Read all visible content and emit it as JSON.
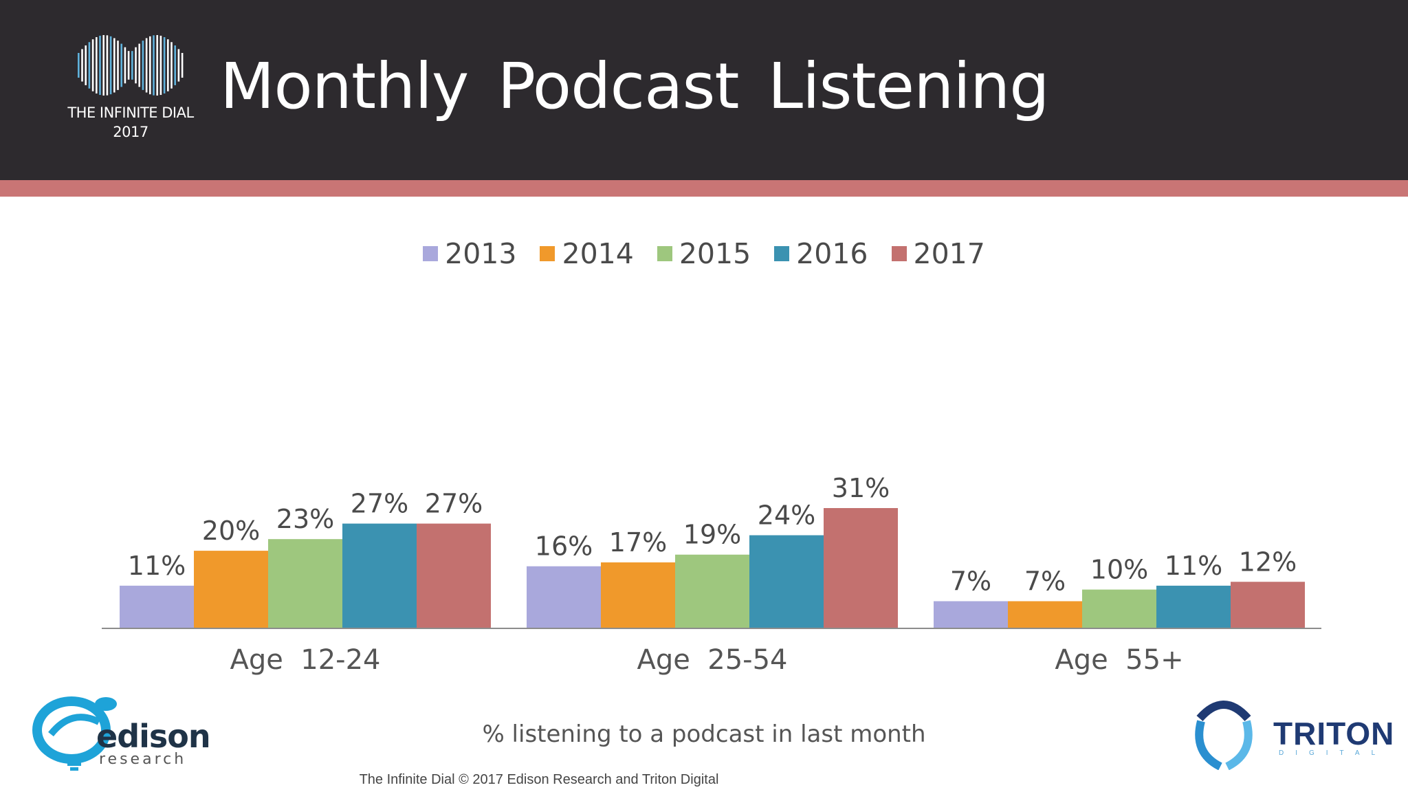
{
  "header": {
    "title": "Monthly Podcast Listening",
    "logo_line1": "THE INFINITE DIAL",
    "logo_line2": "2017"
  },
  "colors": {
    "header_bg": "#2d2a2e",
    "stripe": "#c97575",
    "series": [
      "#a9a8dc",
      "#f0992b",
      "#9ec77e",
      "#3b92b1",
      "#c3716f"
    ]
  },
  "chart_data": {
    "type": "bar",
    "title": "Monthly Podcast Listening",
    "categories": [
      "Age  12-24",
      "Age  25-54",
      "Age  55+"
    ],
    "series": [
      {
        "name": "2013",
        "values": [
          11,
          16,
          7
        ],
        "labels": [
          "11%",
          "16%",
          "7%"
        ]
      },
      {
        "name": "2014",
        "values": [
          20,
          17,
          7
        ],
        "labels": [
          "20%",
          "17%",
          "7%"
        ]
      },
      {
        "name": "2015",
        "values": [
          23,
          19,
          10
        ],
        "labels": [
          "23%",
          "19%",
          "10%"
        ]
      },
      {
        "name": "2016",
        "values": [
          27,
          24,
          11
        ],
        "labels": [
          "27%",
          "24%",
          "11%"
        ]
      },
      {
        "name": "2017",
        "values": [
          27,
          31,
          12
        ],
        "labels": [
          "27%",
          "31%",
          "12%"
        ]
      }
    ],
    "xlabel": "% listening to a podcast in last month",
    "ylabel": "",
    "ylim": [
      0,
      31
    ],
    "grid": false,
    "legend_position": "top-center"
  },
  "footer": {
    "text": "The Infinite Dial   © 2017 Edison Research and Triton Digital"
  },
  "logos": {
    "edison_word": "edison",
    "edison_sub": "research",
    "triton_word": "TRITON",
    "triton_sub": "DIGITAL"
  }
}
